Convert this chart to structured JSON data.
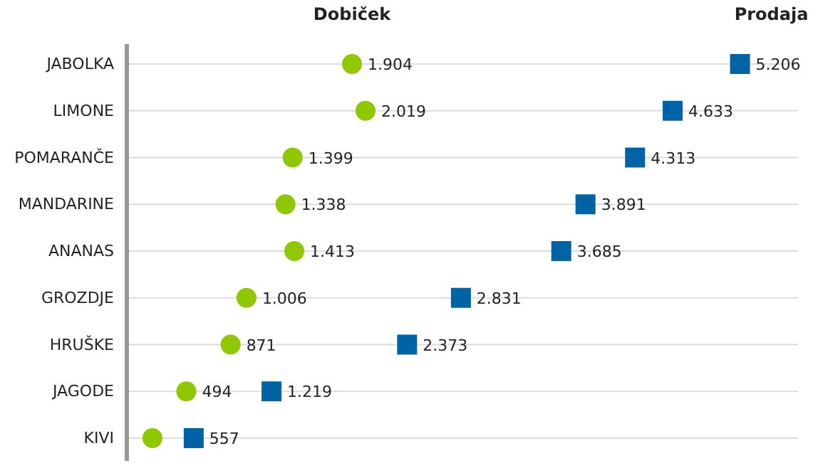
{
  "chart_data": {
    "type": "scatter",
    "orientation": "horizontal",
    "categories": [
      "JABOLKA",
      "LIMONE",
      "POMARANČE",
      "MANDARINE",
      "ANANAS",
      "GROZDJE",
      "HRUŠKE",
      "JAGODE",
      "KIVI"
    ],
    "xlim": [
      0,
      5700
    ],
    "grid": "y",
    "legend": "top",
    "tick_labels": "y",
    "series": [
      {
        "name": "Dobiček",
        "color": "#8fc800",
        "marker": "circle",
        "values": [
          1904,
          2019,
          1399,
          1338,
          1413,
          1006,
          871,
          494,
          206
        ],
        "value_labels": [
          "1.904",
          "2.019",
          "1.399",
          "1.338",
          "1.413",
          "1.006",
          "871",
          "494",
          null
        ]
      },
      {
        "name": "Prodaja",
        "color": "#0063a6",
        "marker": "square",
        "values": [
          5206,
          4633,
          4313,
          3891,
          3685,
          2831,
          2373,
          1219,
          557
        ],
        "value_labels": [
          "5.206",
          "4.633",
          "4.313",
          "3.891",
          "3.685",
          "2.831",
          "2.373",
          "1.219",
          "557"
        ]
      }
    ]
  }
}
